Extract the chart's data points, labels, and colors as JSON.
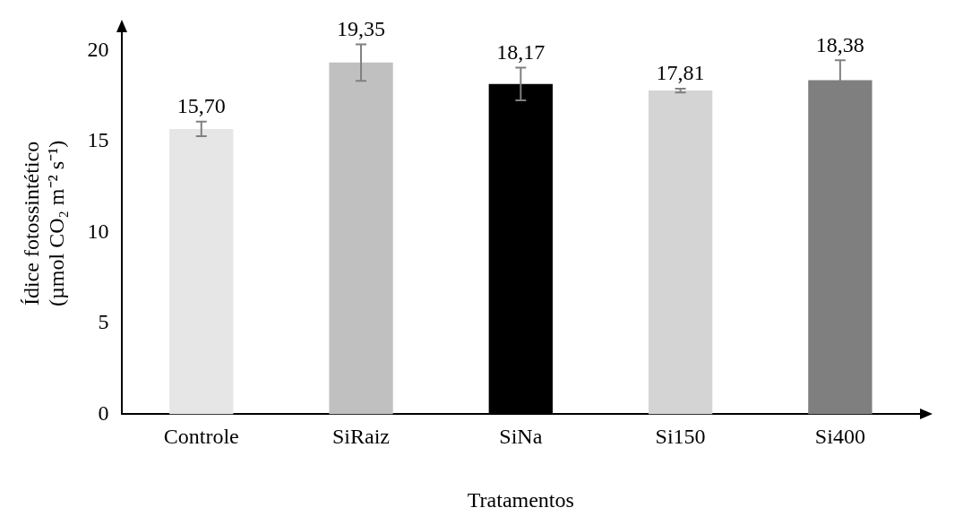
{
  "chart_data": {
    "type": "bar",
    "xlabel": "Tratamentos",
    "ylabel": "Ídice fotossintético\n(µmol CO₂ m⁻² s⁻¹)",
    "categories": [
      "Controle",
      "SiRaiz",
      "SiNa",
      "Si150",
      "Si400"
    ],
    "values": [
      15.7,
      19.35,
      18.17,
      17.81,
      18.38
    ],
    "value_labels": [
      "15,70",
      "19,35",
      "18,17",
      "17,81",
      "18,38"
    ],
    "errors": [
      0.4,
      1.0,
      0.9,
      0.1,
      1.1
    ],
    "colors": [
      "#e6e6e6",
      "#c0c0c0",
      "#000000",
      "#d4d4d4",
      "#7f7f7f"
    ],
    "ylim": [
      0,
      21
    ],
    "yticks": [
      0,
      5,
      10,
      15,
      20
    ],
    "grid": false,
    "legend": false
  }
}
